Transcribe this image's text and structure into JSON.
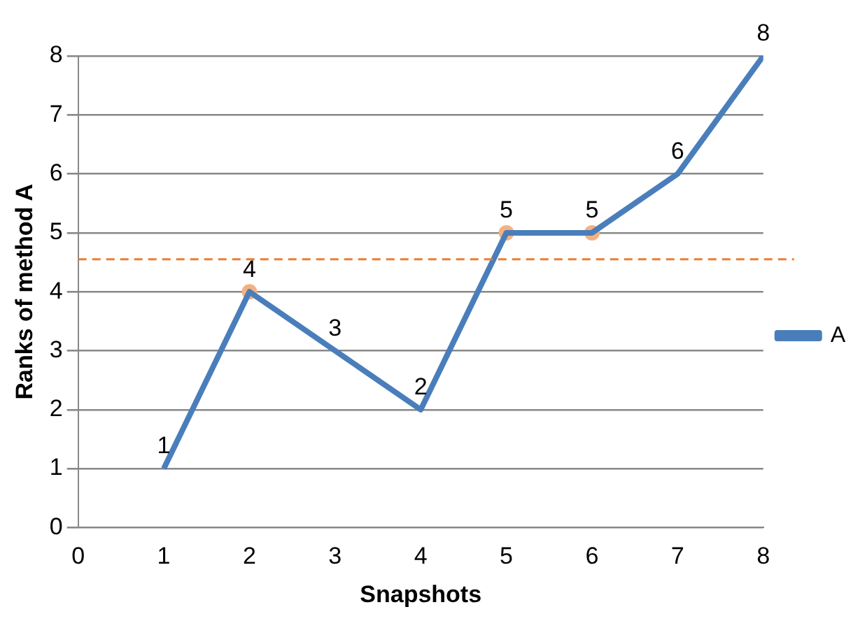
{
  "chart_data": {
    "type": "line",
    "xlabel": "Snapshots",
    "ylabel": "Ranks of method A",
    "x": [
      1,
      2,
      3,
      4,
      5,
      6,
      7,
      8
    ],
    "series": [
      {
        "name": "A",
        "color": "#4a7ebb",
        "values": [
          1,
          4,
          3,
          2,
          5,
          5,
          6,
          8
        ],
        "value_labels": [
          "1",
          "4",
          "3",
          "2",
          "5",
          "5",
          "6",
          "8"
        ]
      },
      {
        "type": "scatter",
        "color": "#f4b183",
        "marker": "circle",
        "x": [
          2,
          5,
          6
        ],
        "values": [
          4,
          5,
          5
        ]
      }
    ],
    "xlim": [
      0,
      8
    ],
    "xticks": [
      0,
      1,
      2,
      3,
      4,
      5,
      6,
      7,
      8
    ],
    "ylim": [
      0,
      8
    ],
    "yticks": [
      0,
      1,
      2,
      3,
      4,
      5,
      6,
      7,
      8
    ],
    "grid": "y",
    "legend": "right",
    "marker": "none",
    "ref_lines": [
      {
        "axis": "y",
        "value": 4.55,
        "color": "#ed7d31",
        "line_style": "dashed"
      }
    ]
  }
}
